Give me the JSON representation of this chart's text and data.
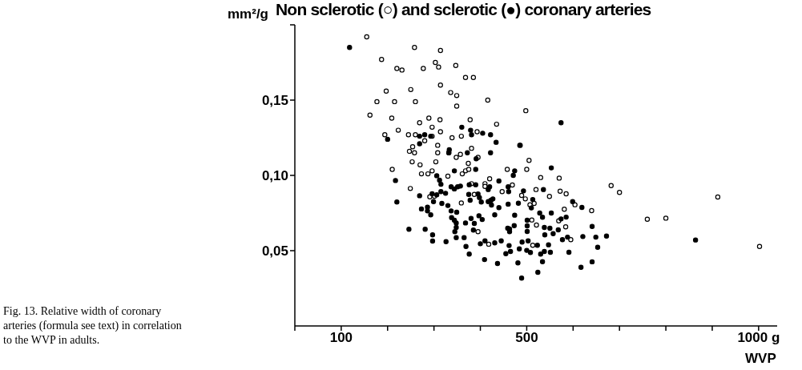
{
  "chart_data": {
    "type": "scatter",
    "title": "Non sclerotic (○) and sclerotic (●) coronary arteries",
    "ylabel": "mm²/g",
    "xlabel": "WVP",
    "annotations": [
      "Fig. 13. Relative width of coronary arteries (formula see text) in correlation to the WVP in adults."
    ],
    "xlim": [
      0,
      1040
    ],
    "xticks": [
      {
        "value": 0,
        "label": null
      },
      100,
      {
        "value": 200,
        "label": null
      },
      {
        "value": 300,
        "label": null
      },
      {
        "value": 400,
        "label": null
      },
      500,
      {
        "value": 600,
        "label": null
      },
      {
        "value": 700,
        "label": null
      },
      {
        "value": 800,
        "label": null
      },
      {
        "value": 900,
        "label": null
      },
      {
        "value": 1000,
        "label": "1000 g"
      }
    ],
    "ylim": [
      0,
      0.2
    ],
    "yticks": [
      {
        "value": 0.05,
        "label": "0,05"
      },
      {
        "value": 0.1,
        "label": "0,10"
      },
      {
        "value": 0.15,
        "label": "0,15"
      },
      {
        "value": 0.2,
        "label": null
      }
    ],
    "grid": false,
    "legend": false,
    "marker": "circle",
    "series": [
      {
        "color": "#000000",
        "x": [
          155,
          258,
          314,
          187,
          303,
          310,
          347,
          220,
          231,
          277,
          368,
          385,
          197,
          250,
          314,
          336,
          349,
          349,
          177,
          215,
          260,
          416,
          498,
          162,
          209,
          269,
          289,
          313,
          378,
          435,
          223,
          296,
          314,
          194,
          245,
          260,
          296,
          339,
          359,
          393,
          254,
          247,
          258,
          308,
          308,
          280,
          348,
          357,
          381,
          332,
          374,
          395,
          253,
          270,
          304,
          505,
          458,
          500,
          210,
          273,
          287,
          296,
          330,
          361,
          368,
          375,
          249,
          291,
          301,
          381,
          410,
          420,
          410,
          447,
          469,
          359,
          387,
          395,
          418,
          530,
          570,
          520,
          572,
          585,
          549,
          516,
          604,
          581,
          640,
          569,
          584,
          521,
          595,
          682,
          700,
          760,
          800,
          912,
          1002,
          489,
          497,
          507,
          511,
          513
        ],
        "values": [
          0.192,
          0.185,
          0.183,
          0.177,
          0.175,
          0.172,
          0.173,
          0.171,
          0.17,
          0.171,
          0.165,
          0.165,
          0.156,
          0.157,
          0.16,
          0.155,
          0.153,
          0.146,
          0.149,
          0.149,
          0.149,
          0.15,
          0.143,
          0.14,
          0.138,
          0.135,
          0.138,
          0.137,
          0.137,
          0.134,
          0.13,
          0.132,
          0.129,
          0.127,
          0.127,
          0.127,
          0.126,
          0.125,
          0.126,
          0.129,
          0.119,
          0.116,
          0.115,
          0.12,
          0.115,
          0.123,
          0.112,
          0.114,
          0.118,
          0.115,
          0.108,
          0.112,
          0.109,
          0.107,
          0.109,
          0.11,
          0.104,
          0.104,
          0.104,
          0.101,
          0.101,
          0.103,
          0.0995,
          0.101,
          0.103,
          0.104,
          0.0913,
          0.0858,
          0.0862,
          0.0945,
          0.0945,
          0.0977,
          0.0927,
          0.0892,
          0.0936,
          0.0817,
          0.0874,
          0.0626,
          0.0543,
          0.0986,
          0.0982,
          0.0906,
          0.0895,
          0.0878,
          0.086,
          0.0814,
          0.0805,
          0.0775,
          0.0766,
          0.0698,
          0.0658,
          0.067,
          0.0573,
          0.0932,
          0.0887,
          0.0709,
          0.0716,
          0.0856,
          0.0528,
          0.0867,
          0.0844,
          0.0805,
          0.0704,
          0.0536
        ]
      },
      {
        "color": "#000000",
        "x": [
          118,
          200,
          269,
          280,
          293,
          269,
          360,
          379,
          381,
          405,
          422,
          434,
          486,
          333,
          332,
          372,
          422,
          391,
          217,
          220,
          246,
          281,
          269,
          273,
          286,
          286,
          293,
          297,
          297,
          326,
          296,
          299,
          306,
          315,
          315,
          312,
          306,
          317,
          325,
          330,
          337,
          349,
          338,
          344,
          348,
          348,
          345,
          348,
          365,
          369,
          376,
          368,
          380,
          387,
          385,
          397,
          404,
          431,
          344,
          357,
          376,
          375,
          378,
          390,
          395,
          398,
          402,
          417,
          420,
          417,
          424,
          423,
          427,
          440,
          440,
          460,
          461,
          460,
          463,
          473,
          459,
          463,
          400,
          410,
          431,
          445,
          462,
          465,
          455,
          409,
          437,
          337,
          351,
          344,
          390,
          471,
          574,
          485,
          553,
          474,
          493,
          536,
          513,
          482,
          510,
          528,
          534,
          553,
          599,
          619,
          474,
          501,
          501,
          501,
          538,
          550,
          568,
          574,
          585,
          557,
          539,
          641,
          621,
          649,
          672,
          577,
          588,
          490,
          503,
          484,
          500,
          508,
          523,
          547,
          530,
          538,
          551,
          591,
          653,
          481,
          534,
          524,
          489,
          617,
          641,
          864
        ],
        "values": [
          0.185,
          0.124,
          0.121,
          0.127,
          0.126,
          0.126,
          0.132,
          0.13,
          0.127,
          0.128,
          0.127,
          0.122,
          0.12,
          0.117,
          0.115,
          0.115,
          0.115,
          0.111,
          0.0966,
          0.0823,
          0.0642,
          0.0642,
          0.0865,
          0.0777,
          0.0789,
          0.0764,
          0.0738,
          0.0605,
          0.0564,
          0.056,
          0.0878,
          0.0826,
          0.0871,
          0.0941,
          0.0892,
          0.0968,
          0.0998,
          0.0814,
          0.0881,
          0.08,
          0.0764,
          0.0755,
          0.072,
          0.0702,
          0.0684,
          0.0654,
          0.0626,
          0.0587,
          0.0587,
          0.0528,
          0.0477,
          0.0684,
          0.0714,
          0.0681,
          0.0637,
          0.0732,
          0.0707,
          0.0738,
          0.091,
          0.0929,
          0.0938,
          0.0874,
          0.0835,
          0.0938,
          0.0876,
          0.0853,
          0.0823,
          0.0906,
          0.0924,
          0.0826,
          0.0803,
          0.0835,
          0.0844,
          0.0786,
          0.0963,
          0.0924,
          0.0892,
          0.0809,
          0.0644,
          0.0666,
          0.0649,
          0.0626,
          0.0546,
          0.0565,
          0.0552,
          0.0565,
          0.0534,
          0.0495,
          0.048,
          0.0441,
          0.0415,
          0.0924,
          0.0924,
          0.103,
          0.104,
          0.1,
          0.135,
          0.12,
          0.105,
          0.103,
          0.0897,
          0.0906,
          0.084,
          0.0815,
          0.0784,
          0.075,
          0.0722,
          0.075,
          0.0826,
          0.0787,
          0.0736,
          0.0702,
          0.0665,
          0.0628,
          0.0654,
          0.0649,
          0.0638,
          0.0711,
          0.0723,
          0.0613,
          0.0605,
          0.0661,
          0.0594,
          0.059,
          0.0597,
          0.0573,
          0.059,
          0.0557,
          0.0565,
          0.0512,
          0.0502,
          0.0488,
          0.0536,
          0.0539,
          0.0477,
          0.0495,
          0.0489,
          0.0489,
          0.0523,
          0.0419,
          0.0427,
          0.0356,
          0.0318,
          0.039,
          0.0426,
          0.0571
        ]
      }
    ]
  }
}
